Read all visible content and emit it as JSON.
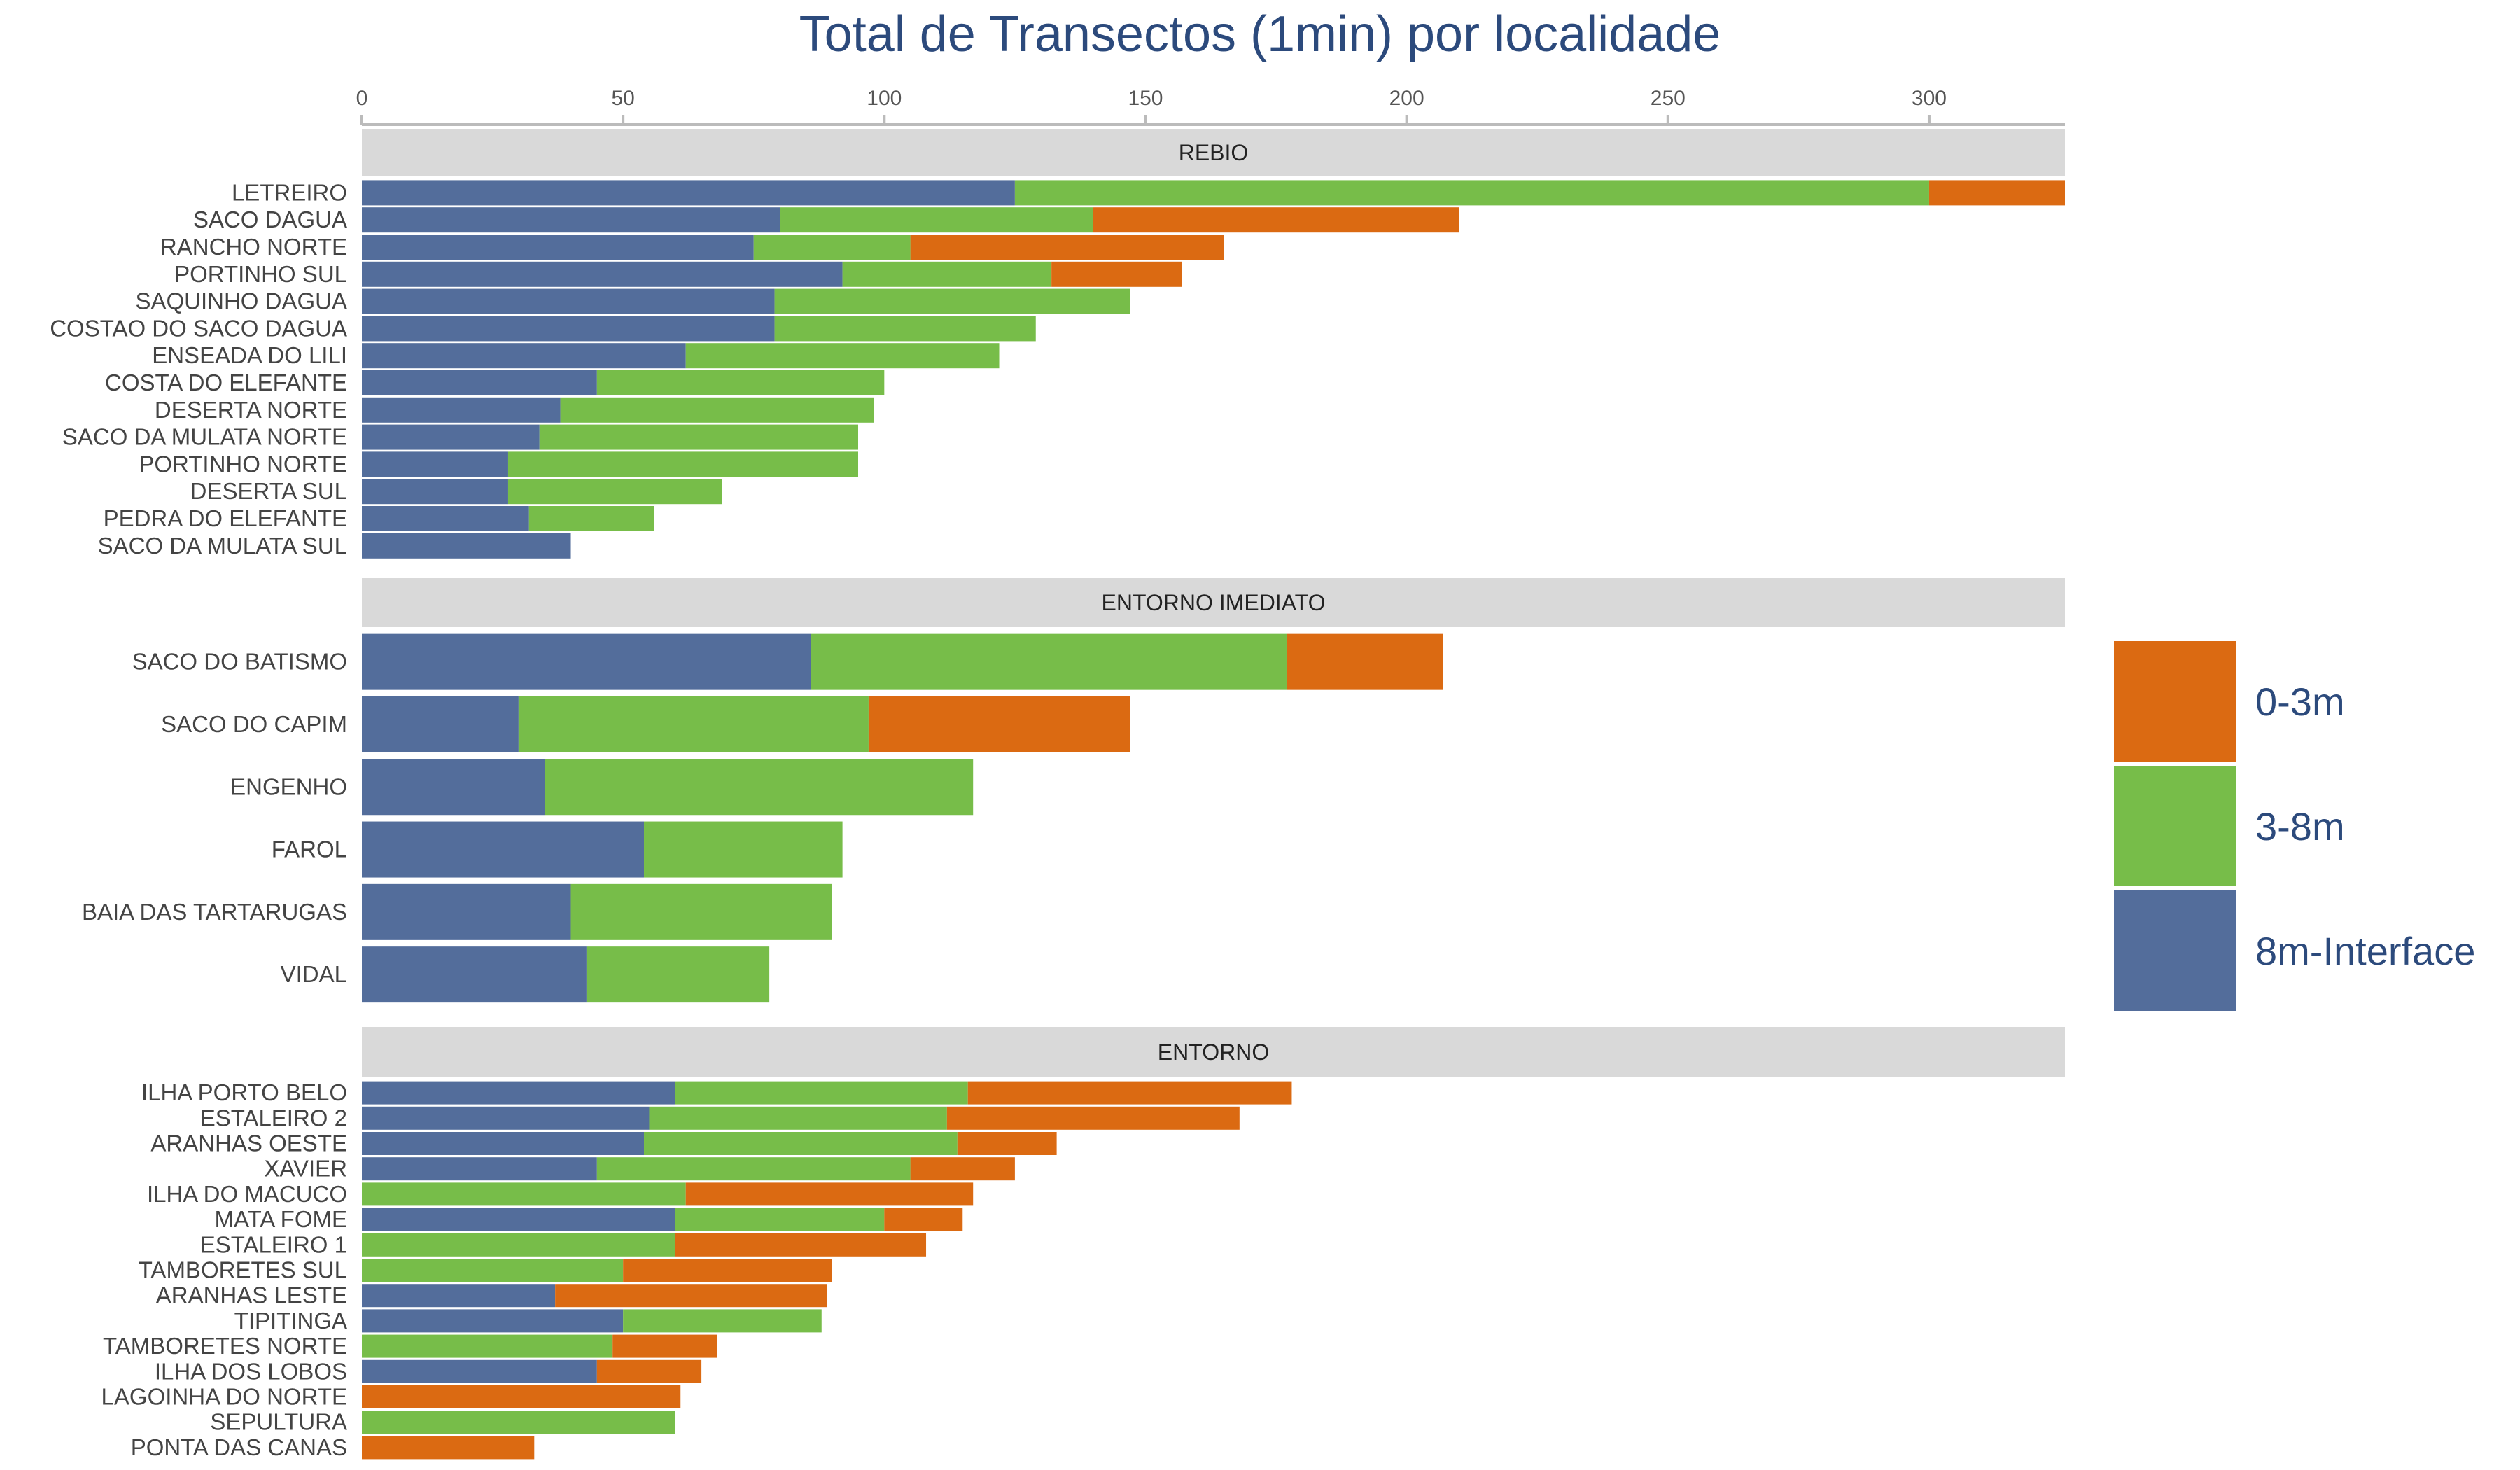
{
  "chart_data": {
    "type": "bar",
    "orientation": "horizontal",
    "stacked": true,
    "title": "Total de Transectos (1min) por localidade",
    "xlim": [
      0,
      326
    ],
    "xticks": [
      0,
      50,
      100,
      150,
      200,
      250,
      300
    ],
    "x_axis_position": "top",
    "grid": false,
    "legend_position": "right",
    "series": [
      {
        "name": "8m-Interface",
        "color": "#536D9B"
      },
      {
        "name": "3-8m",
        "color": "#77BD49"
      },
      {
        "name": "0-3m",
        "color": "#DB6A12"
      }
    ],
    "legend": [
      {
        "name": "0-3m",
        "color": "#DB6A12"
      },
      {
        "name": "3-8m",
        "color": "#77BD49"
      },
      {
        "name": "8m-Interface",
        "color": "#536D9B"
      }
    ],
    "panels": [
      {
        "label": "REBIO",
        "categories": [
          "LETREIRO",
          "SACO DAGUA",
          "RANCHO NORTE",
          "PORTINHO SUL",
          "SAQUINHO DAGUA",
          "COSTAO DO SACO DAGUA",
          "ENSEADA DO LILI",
          "COSTA DO ELEFANTE",
          "DESERTA NORTE",
          "SACO DA MULATA NORTE",
          "PORTINHO NORTE",
          "DESERTA SUL",
          "PEDRA DO ELEFANTE",
          "SACO DA MULATA SUL"
        ],
        "values": {
          "8m-Interface": [
            125,
            80,
            75,
            92,
            79,
            79,
            62,
            45,
            38,
            34,
            28,
            28,
            32,
            40
          ],
          "3-8m": [
            175,
            60,
            30,
            40,
            68,
            50,
            60,
            55,
            60,
            61,
            67,
            41,
            24,
            0
          ],
          "0-3m": [
            26,
            70,
            60,
            25,
            0,
            0,
            0,
            0,
            0,
            0,
            0,
            0,
            0,
            0
          ]
        }
      },
      {
        "label": "ENTORNO IMEDIATO",
        "categories": [
          "SACO DO BATISMO",
          "SACO DO CAPIM",
          "ENGENHO",
          "FAROL",
          "BAIA DAS TARTARUGAS",
          "VIDAL"
        ],
        "values": {
          "8m-Interface": [
            86,
            30,
            35,
            54,
            40,
            43
          ],
          "3-8m": [
            91,
            67,
            82,
            38,
            50,
            35
          ],
          "0-3m": [
            30,
            50,
            0,
            0,
            0,
            0
          ]
        }
      },
      {
        "label": "ENTORNO",
        "categories": [
          "ILHA PORTO BELO",
          "ESTALEIRO 2",
          "ARANHAS OESTE",
          "XAVIER",
          "ILHA DO MACUCO",
          "MATA FOME",
          "ESTALEIRO 1",
          "TAMBORETES SUL",
          "ARANHAS LESTE",
          "TIPITINGA",
          "TAMBORETES NORTE",
          "ILHA DOS LOBOS",
          "LAGOINHA DO NORTE",
          "SEPULTURA",
          "PONTA DAS CANAS"
        ],
        "values": {
          "8m-Interface": [
            60,
            55,
            54,
            45,
            0,
            60,
            0,
            0,
            37,
            50,
            0,
            45,
            0,
            0,
            0
          ],
          "3-8m": [
            56,
            57,
            60,
            60,
            62,
            40,
            60,
            50,
            0,
            38,
            48,
            0,
            0,
            60,
            0
          ],
          "0-3m": [
            62,
            56,
            19,
            20,
            55,
            15,
            48,
            40,
            52,
            0,
            20,
            20,
            61,
            0,
            33
          ]
        }
      }
    ]
  }
}
